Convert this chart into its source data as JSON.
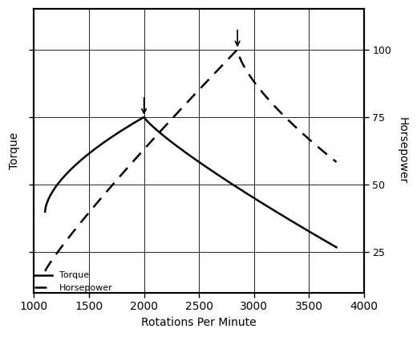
{
  "xlabel": "Rotations Per Minute",
  "ylabel_left": "Torque",
  "ylabel_right": "Horsepower",
  "xlim": [
    1000,
    4000
  ],
  "ylim": [
    10,
    115
  ],
  "yticks_right": [
    25,
    50,
    75,
    100
  ],
  "xticks": [
    1000,
    1500,
    2000,
    2500,
    3000,
    3500,
    4000
  ],
  "background_color": "#ffffff",
  "line_color": "#000000",
  "torque_peak_x": 2000,
  "torque_peak_y": 75,
  "hp_peak_x": 2850,
  "hp_peak_y": 100,
  "legend_torque": "Torque",
  "legend_hp": "Horsepower"
}
